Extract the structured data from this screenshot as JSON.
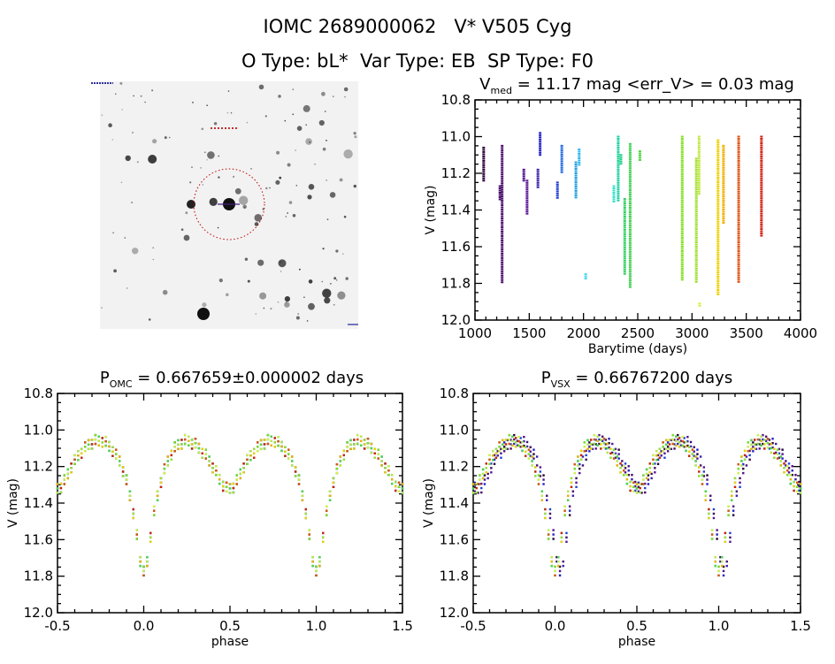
{
  "header": {
    "title": "IOMC 2689000062   V* V505 Cyg",
    "subtitle": "O Type: bL*  Var Type: EB  SP Type: F0"
  },
  "chart_data": [
    {
      "id": "star-field-image",
      "type": "image",
      "description_labels": []
    },
    {
      "id": "light-curve",
      "type": "scatter",
      "title_main": "V",
      "title_sub": "med",
      "title_rest": " = 11.17 mag <err_V> = 0.03 mag",
      "xlabel": "Barytime (days)",
      "ylabel": "V (mag)",
      "xlim": [
        1000,
        4000
      ],
      "ylim": [
        12.0,
        10.8
      ],
      "y_inverted": true,
      "xticks": [
        1000,
        1500,
        2000,
        2500,
        3000,
        3500,
        4000
      ],
      "yticks": [
        10.8,
        11.0,
        11.2,
        11.4,
        11.6,
        11.8,
        12.0
      ],
      "grid": false,
      "segments": [
        {
          "t": 1080,
          "vmin": 11.06,
          "vmax": 11.25,
          "color": "#2a0035"
        },
        {
          "t": 1230,
          "vmin": 11.27,
          "vmax": 11.35,
          "color": "#3f0a60"
        },
        {
          "t": 1250,
          "vmin": 11.05,
          "vmax": 11.8,
          "color": "#4a0a70"
        },
        {
          "t": 1450,
          "vmin": 11.18,
          "vmax": 11.25,
          "color": "#50108a"
        },
        {
          "t": 1480,
          "vmin": 11.24,
          "vmax": 11.43,
          "color": "#561495"
        },
        {
          "t": 1580,
          "vmin": 11.18,
          "vmax": 11.28,
          "color": "#3a20a8"
        },
        {
          "t": 1600,
          "vmin": 10.98,
          "vmax": 11.11,
          "color": "#2020c8"
        },
        {
          "t": 1760,
          "vmin": 11.25,
          "vmax": 11.34,
          "color": "#2040d8"
        },
        {
          "t": 1800,
          "vmin": 11.05,
          "vmax": 11.2,
          "color": "#2068e0"
        },
        {
          "t": 1930,
          "vmin": 11.14,
          "vmax": 11.34,
          "color": "#20a0e0"
        },
        {
          "t": 1960,
          "vmin": 11.07,
          "vmax": 11.16,
          "color": "#30b8ec"
        },
        {
          "t": 2020,
          "vmin": 11.75,
          "vmax": 11.78,
          "color": "#40d8f0"
        },
        {
          "t": 2280,
          "vmin": 11.27,
          "vmax": 11.36,
          "color": "#30e0d0"
        },
        {
          "t": 2320,
          "vmin": 11.0,
          "vmax": 11.35,
          "color": "#20d0a0"
        },
        {
          "t": 2345,
          "vmin": 11.1,
          "vmax": 11.15,
          "color": "#20d080"
        },
        {
          "t": 2380,
          "vmin": 11.34,
          "vmax": 11.75,
          "color": "#30d060"
        },
        {
          "t": 2430,
          "vmin": 11.04,
          "vmax": 11.82,
          "color": "#40d050"
        },
        {
          "t": 2520,
          "vmin": 11.08,
          "vmax": 11.13,
          "color": "#50d840"
        },
        {
          "t": 2910,
          "vmin": 11.0,
          "vmax": 11.79,
          "color": "#80e020"
        },
        {
          "t": 3040,
          "vmin": 11.12,
          "vmax": 11.8,
          "color": "#a0e030"
        },
        {
          "t": 3065,
          "vmin": 11.0,
          "vmax": 11.32,
          "color": "#c0e840"
        },
        {
          "t": 3070,
          "vmin": 11.91,
          "vmax": 11.93,
          "color": "#d8f040"
        },
        {
          "t": 3240,
          "vmin": 11.02,
          "vmax": 11.86,
          "color": "#f0d000"
        },
        {
          "t": 3290,
          "vmin": 11.05,
          "vmax": 11.47,
          "color": "#f0b000"
        },
        {
          "t": 3430,
          "vmin": 11.0,
          "vmax": 11.8,
          "color": "#e05010"
        },
        {
          "t": 3640,
          "vmin": 11.0,
          "vmax": 11.54,
          "color": "#d02010"
        }
      ]
    },
    {
      "id": "phase-omc",
      "type": "scatter",
      "title_main": "P",
      "title_sub": "OMC",
      "title_rest": " = 0.667659±0.000002 days",
      "xlabel": "phase",
      "ylabel": "V (mag)",
      "xlim": [
        -0.5,
        1.5
      ],
      "ylim": [
        12.0,
        10.8
      ],
      "y_inverted": true,
      "xticks": [
        -0.5,
        0.0,
        0.5,
        1.0,
        1.5
      ],
      "yticks": [
        10.8,
        11.0,
        11.2,
        11.4,
        11.6,
        11.8,
        12.0
      ],
      "grid": false
    },
    {
      "id": "phase-vsx",
      "type": "scatter",
      "title_main": "P",
      "title_sub": "VSX",
      "title_rest": " = 0.66767200 days",
      "xlabel": "phase",
      "ylabel": "V (mag)",
      "xlim": [
        -0.5,
        1.5
      ],
      "ylim": [
        12.0,
        10.8
      ],
      "y_inverted": true,
      "xticks": [
        -0.5,
        0.0,
        0.5,
        1.0,
        1.5
      ],
      "yticks": [
        10.8,
        11.0,
        11.2,
        11.4,
        11.6,
        11.8,
        12.0
      ],
      "grid": false
    }
  ],
  "phase_curve": {
    "phase": [
      0,
      0.02,
      0.04,
      0.06,
      0.08,
      0.1,
      0.12,
      0.14,
      0.16,
      0.18,
      0.2,
      0.22,
      0.24,
      0.26,
      0.28,
      0.3,
      0.32,
      0.34,
      0.36,
      0.38,
      0.4,
      0.42,
      0.44,
      0.46,
      0.48,
      0.5,
      0.52,
      0.54,
      0.56,
      0.58,
      0.6,
      0.62,
      0.64,
      0.66,
      0.68,
      0.7,
      0.72,
      0.74,
      0.76,
      0.78,
      0.8,
      0.82,
      0.84,
      0.86,
      0.88,
      0.9,
      0.92,
      0.94,
      0.96,
      0.98
    ],
    "v": [
      11.78,
      11.72,
      11.58,
      11.45,
      11.36,
      11.28,
      11.22,
      11.17,
      11.13,
      11.1,
      11.08,
      11.07,
      11.06,
      11.06,
      11.07,
      11.08,
      11.1,
      11.12,
      11.14,
      11.17,
      11.2,
      11.23,
      11.27,
      11.3,
      11.32,
      11.32,
      11.31,
      11.28,
      11.24,
      11.2,
      11.17,
      11.14,
      11.12,
      11.1,
      11.08,
      11.07,
      11.06,
      11.06,
      11.06,
      11.07,
      11.09,
      11.11,
      11.14,
      11.17,
      11.22,
      11.28,
      11.36,
      11.45,
      11.58,
      11.72
    ]
  }
}
